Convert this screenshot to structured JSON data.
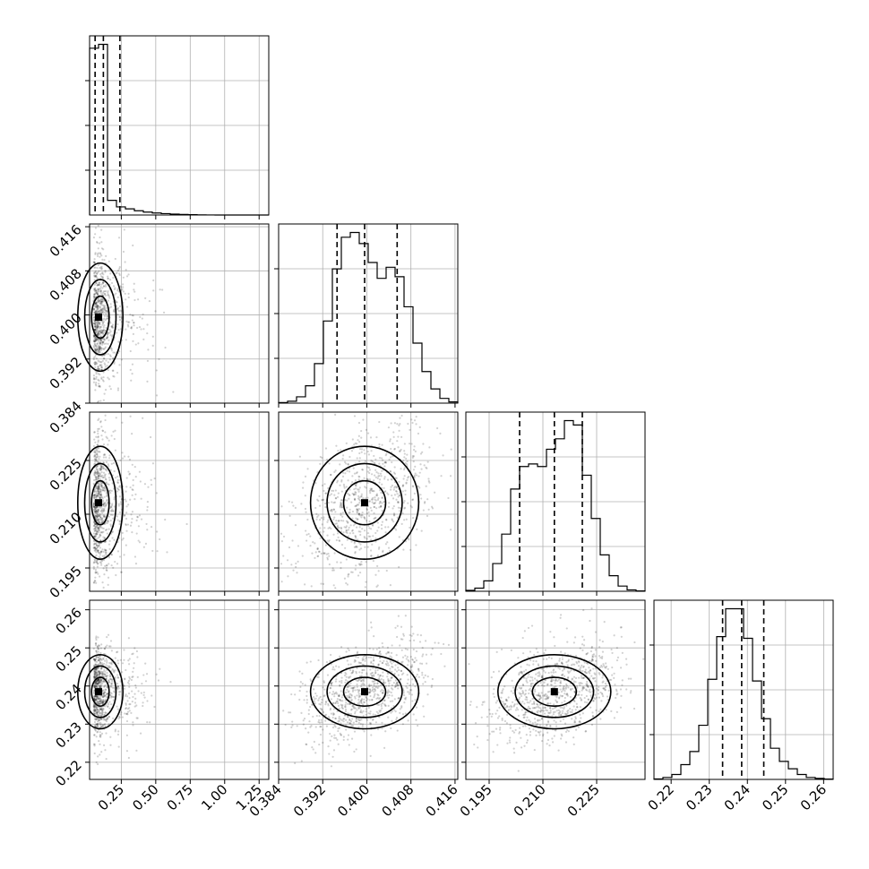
{
  "chart_data": {
    "type": "corner",
    "parameters": [
      {
        "ticks": [
          0.25,
          0.5,
          0.75,
          1.0,
          1.25
        ],
        "tick_labels": [
          "0.25",
          "0.50",
          "0.75",
          "1.00",
          "1.25"
        ],
        "range": [
          0.02,
          1.32
        ],
        "quantiles": [
          0.06,
          0.12,
          0.24
        ]
      },
      {
        "ticks": [
          0.384,
          0.392,
          0.4,
          0.408,
          0.416
        ],
        "tick_labels": [
          "0.384",
          "0.392",
          "0.400",
          "0.408",
          "0.416"
        ],
        "range": [
          0.384,
          0.4165
        ],
        "quantiles": [
          0.3946,
          0.3996,
          0.4055
        ]
      },
      {
        "ticks": [
          0.195,
          0.21,
          0.225
        ],
        "tick_labels": [
          "0.195",
          "0.210",
          "0.225"
        ],
        "range": [
          0.1885,
          0.2385
        ],
        "quantiles": [
          0.2035,
          0.2132,
          0.221
        ]
      },
      {
        "ticks": [
          0.22,
          0.23,
          0.24,
          0.25,
          0.26
        ],
        "tick_labels": [
          "0.22",
          "0.23",
          "0.24",
          "0.25",
          "0.26"
        ],
        "range": [
          0.2155,
          0.2625
        ],
        "quantiles": [
          0.2335,
          0.2385,
          0.2443
        ]
      }
    ],
    "histograms": [
      {
        "counts": [
          2160,
          2210,
          190,
          105,
          80,
          55,
          38,
          26,
          18,
          12,
          7,
          4,
          2,
          1,
          0,
          0,
          0,
          0,
          0,
          0
        ]
      },
      {
        "counts": [
          4,
          12,
          40,
          110,
          250,
          520,
          850,
          1050,
          1080,
          1010,
          890,
          790,
          860,
          800,
          610,
          380,
          200,
          90,
          30,
          8
        ]
      },
      {
        "counts": [
          5,
          18,
          60,
          160,
          330,
          590,
          720,
          735,
          720,
          820,
          880,
          985,
          960,
          670,
          420,
          210,
          90,
          30,
          8,
          2
        ]
      },
      {
        "counts": [
          3,
          12,
          30,
          90,
          170,
          330,
          610,
          870,
          1040,
          1040,
          860,
          600,
          370,
          190,
          110,
          65,
          30,
          12,
          6,
          2
        ]
      }
    ]
  }
}
